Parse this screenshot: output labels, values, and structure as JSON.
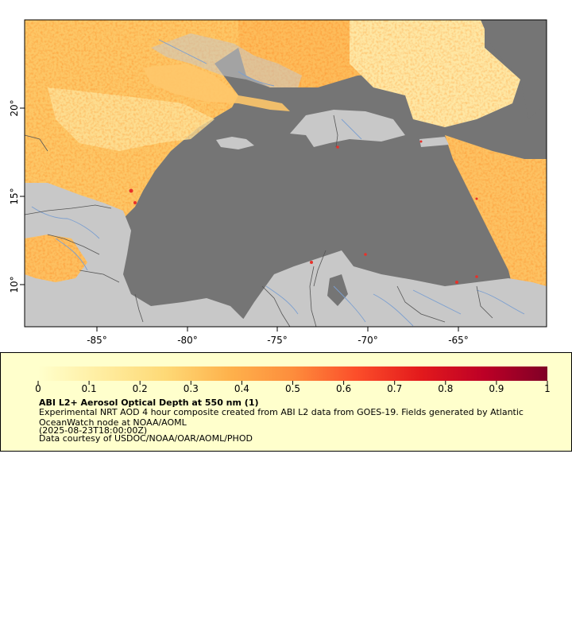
{
  "map": {
    "x_axis_labels": [
      "-85°",
      "-80°",
      "-75°",
      "-70°",
      "-65°"
    ],
    "y_axis_labels": [
      "20°",
      "15°",
      "10°"
    ],
    "colors": {
      "sea": "#757575",
      "land": "#c8c8c8",
      "aod_light": "#fff3c0",
      "aod_mid": "#fdcc6a",
      "aod_high": "#fb9a3c",
      "aod_peak": "#e8312a",
      "rivers": "#7b9fd0",
      "borders": "#555555"
    }
  },
  "legend": {
    "title": "ABI L2+ Aerosol Optical Depth at 550 nm (1)",
    "description": "Experimental NRT AOD 4 hour composite created from ABI L2 data from GOES-19. Fields generated by Atlantic OceanWatch node at NOAA/AOML",
    "date": "(2025-08-23T18:00:00Z)",
    "credit": "Data courtesy of USDOC/NOAA/OAR/AOML/PHOD",
    "colorbar_ticks": [
      "0",
      "0.1",
      "0.2",
      "0.3",
      "0.4",
      "0.5",
      "0.6",
      "0.7",
      "0.8",
      "0.9",
      "1"
    ],
    "colorbar_colors": [
      "#ffffcc",
      "#ffeda0",
      "#fed976",
      "#feb24c",
      "#fd8d3c",
      "#fc4e2a",
      "#e31a1c",
      "#bd0026",
      "#800026"
    ]
  }
}
